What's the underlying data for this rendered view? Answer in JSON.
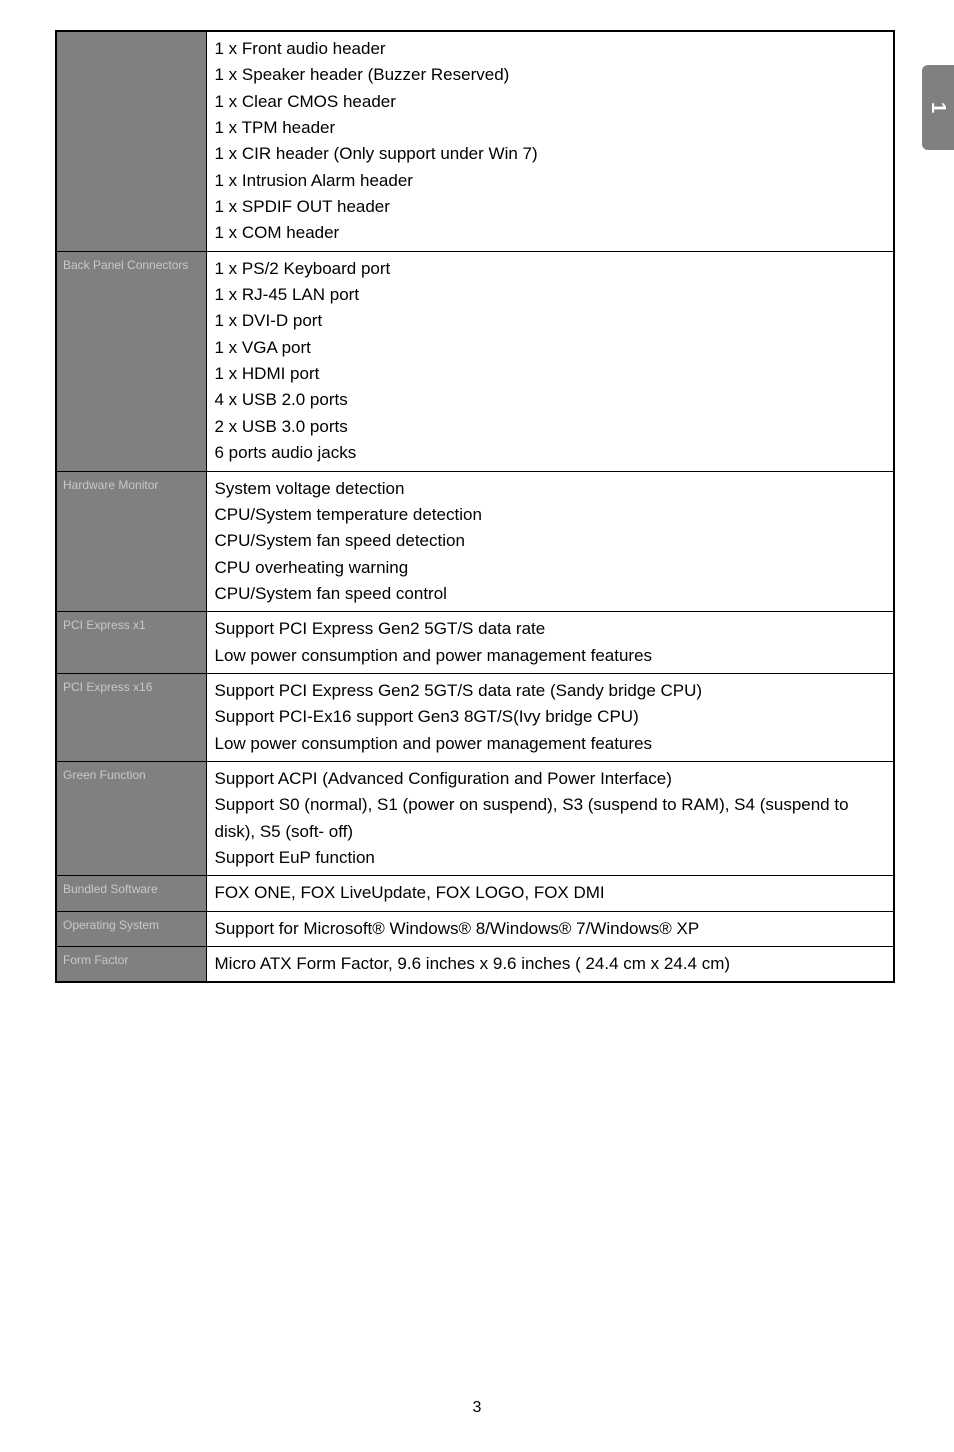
{
  "page_tab": "1",
  "page_number": "3",
  "rows": [
    {
      "label": "",
      "lines": [
        "1 x Front audio header",
        "1 x Speaker header (Buzzer Reserved)",
        "1 x Clear CMOS header",
        "1 x TPM header",
        "1 x CIR header (Only support under Win 7)",
        "1 x Intrusion Alarm header",
        "1 x SPDIF OUT header",
        "1 x COM header"
      ]
    },
    {
      "label": "Back Panel Connectors",
      "lines": [
        "1 x PS/2 Keyboard port",
        "1 x RJ-45 LAN port",
        "1 x DVI-D port",
        "1 x VGA port",
        "1 x HDMI port",
        "4 x USB 2.0 ports",
        "2 x USB 3.0 ports",
        "6 ports audio jacks"
      ]
    },
    {
      "label": "Hardware Monitor",
      "lines": [
        "System voltage detection",
        "CPU/System temperature detection",
        "CPU/System fan speed detection",
        "CPU overheating warning",
        "CPU/System fan speed control"
      ]
    },
    {
      "label": "PCI Express x1",
      "lines": [
        "Support PCI Express Gen2 5GT/S data rate",
        "Low power consumption and power management features"
      ]
    },
    {
      "label": "PCI Express x16",
      "lines": [
        "Support PCI Express Gen2 5GT/S data rate (Sandy bridge CPU)",
        "Support PCI-Ex16 support Gen3 8GT/S(Ivy bridge CPU)",
        "Low power consumption and power management features"
      ]
    },
    {
      "label": "Green Function",
      "lines": [
        "Support ACPI (Advanced Configuration and Power Interface)",
        "Support S0 (normal), S1 (power on suspend), S3 (suspend to RAM), S4 (suspend to disk), S5 (soft- off)",
        "Support EuP function"
      ]
    },
    {
      "label": "Bundled Software",
      "lines": [
        "FOX ONE, FOX LiveUpdate, FOX LOGO, FOX DMI"
      ]
    },
    {
      "label": "Operating System",
      "lines": [
        "Support for Microsoft® Windows® 8/Windows® 7/Windows® XP"
      ]
    },
    {
      "label": "Form Factor",
      "lines": [
        "Micro ATX Form Factor, 9.6 inches x 9.6 inches ( 24.4 cm x 24.4 cm)"
      ]
    }
  ]
}
